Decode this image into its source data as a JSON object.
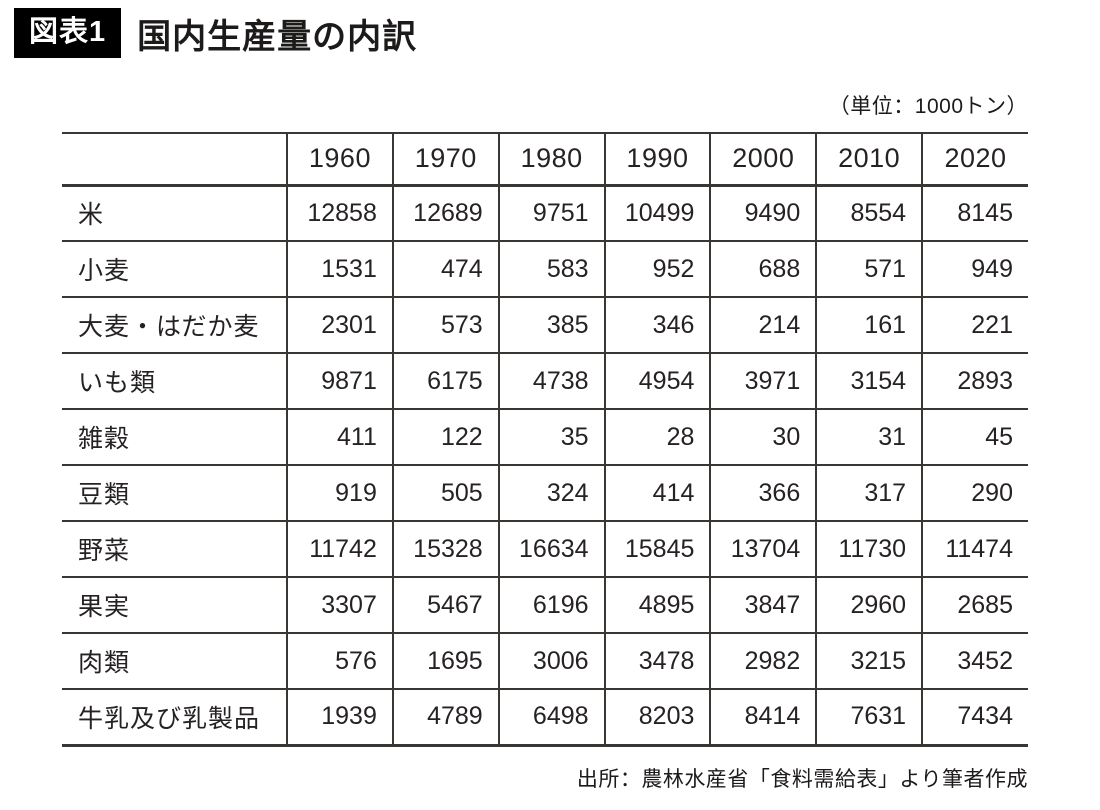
{
  "figure": {
    "label": "図表1",
    "title": "国内生産量の内訳",
    "unit_note": "（単位：1000トン）",
    "source": "出所：農林水産省「食料需給表」より筆者作成"
  },
  "colors": {
    "text": "#262222",
    "border": "#3a3634",
    "figure_label_bg": "#000000",
    "figure_label_fg": "#ffffff",
    "background": "#ffffff"
  },
  "chart_data": {
    "type": "table",
    "title": "国内生産量の内訳",
    "unit": "1000トン",
    "columns": [
      "1960",
      "1970",
      "1980",
      "1990",
      "2000",
      "2010",
      "2020"
    ],
    "rows": [
      {
        "label": "米",
        "values": [
          12858,
          12689,
          9751,
          10499,
          9490,
          8554,
          8145
        ]
      },
      {
        "label": "小麦",
        "values": [
          1531,
          474,
          583,
          952,
          688,
          571,
          949
        ]
      },
      {
        "label": "大麦・はだか麦",
        "values": [
          2301,
          573,
          385,
          346,
          214,
          161,
          221
        ]
      },
      {
        "label": "いも類",
        "values": [
          9871,
          6175,
          4738,
          4954,
          3971,
          3154,
          2893
        ]
      },
      {
        "label": "雑穀",
        "values": [
          411,
          122,
          35,
          28,
          30,
          31,
          45
        ]
      },
      {
        "label": "豆類",
        "values": [
          919,
          505,
          324,
          414,
          366,
          317,
          290
        ]
      },
      {
        "label": "野菜",
        "values": [
          11742,
          15328,
          16634,
          15845,
          13704,
          11730,
          11474
        ]
      },
      {
        "label": "果実",
        "values": [
          3307,
          5467,
          6196,
          4895,
          3847,
          2960,
          2685
        ]
      },
      {
        "label": "肉類",
        "values": [
          576,
          1695,
          3006,
          3478,
          2982,
          3215,
          3452
        ]
      },
      {
        "label": "牛乳及び乳製品",
        "values": [
          1939,
          4789,
          6498,
          8203,
          8414,
          7631,
          7434
        ]
      }
    ]
  }
}
